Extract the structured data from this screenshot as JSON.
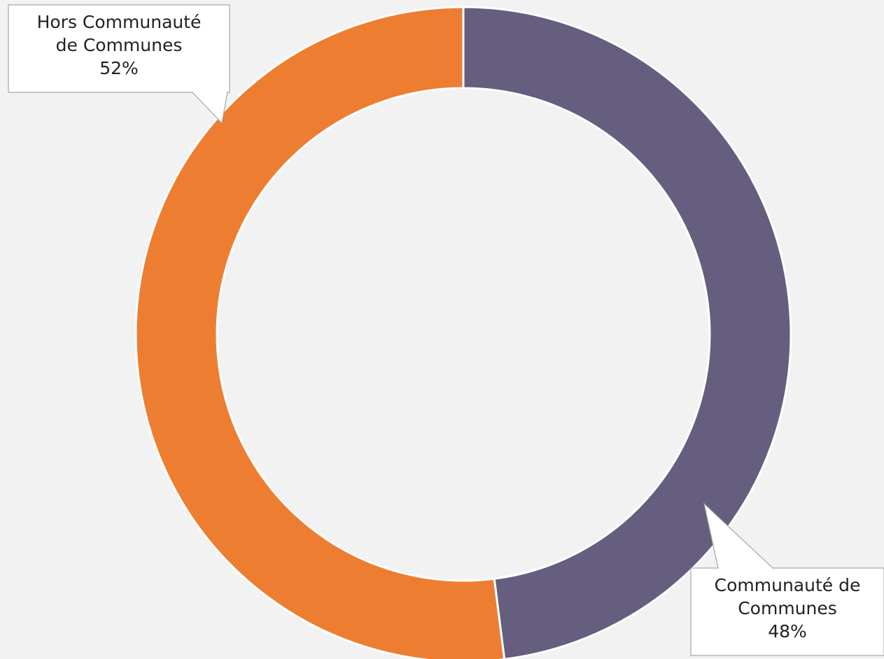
{
  "chart_data": {
    "type": "pie",
    "variant": "donut",
    "start_angle": "top, clockwise",
    "slices": [
      {
        "label_lines": [
          "Communauté de",
          "Communes"
        ],
        "value": 48,
        "percent_label": "48%",
        "color": "#655e7f"
      },
      {
        "label_lines": [
          "Hors Communauté",
          "de Communes"
        ],
        "value": 52,
        "percent_label": "52%",
        "color": "#ed7e31"
      }
    ],
    "background_color": "#f2f2f2",
    "separator_color": "#ffffff",
    "legend": "none",
    "data_labels": "callouts"
  }
}
